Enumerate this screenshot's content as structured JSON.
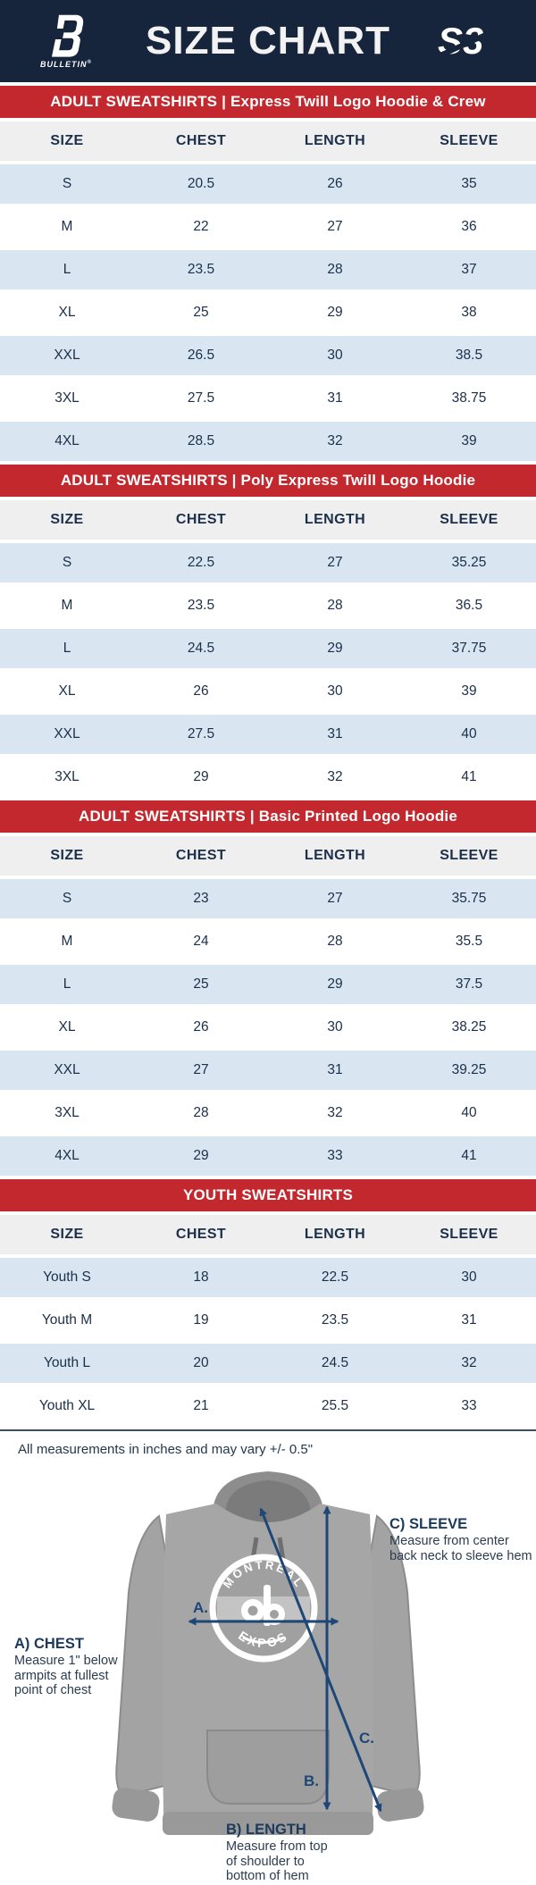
{
  "header": {
    "title": "SIZE CHART",
    "brand_left": "BULLETIN",
    "brand_left_mark": "®",
    "brand_right": "S3"
  },
  "tables": [
    {
      "banner": "ADULT SWEATSHIRTS | Express Twill Logo Hoodie & Crew",
      "columns": [
        "SIZE",
        "CHEST",
        "LENGTH",
        "SLEEVE"
      ],
      "rows": [
        [
          "S",
          "20.5",
          "26",
          "35"
        ],
        [
          "M",
          "22",
          "27",
          "36"
        ],
        [
          "L",
          "23.5",
          "28",
          "37"
        ],
        [
          "XL",
          "25",
          "29",
          "38"
        ],
        [
          "XXL",
          "26.5",
          "30",
          "38.5"
        ],
        [
          "3XL",
          "27.5",
          "31",
          "38.75"
        ],
        [
          "4XL",
          "28.5",
          "32",
          "39"
        ]
      ]
    },
    {
      "banner": "ADULT SWEATSHIRTS | Poly Express Twill Logo Hoodie",
      "columns": [
        "SIZE",
        "CHEST",
        "LENGTH",
        "SLEEVE"
      ],
      "rows": [
        [
          "S",
          "22.5",
          "27",
          "35.25"
        ],
        [
          "M",
          "23.5",
          "28",
          "36.5"
        ],
        [
          "L",
          "24.5",
          "29",
          "37.75"
        ],
        [
          "XL",
          "26",
          "30",
          "39"
        ],
        [
          "XXL",
          "27.5",
          "31",
          "40"
        ],
        [
          "3XL",
          "29",
          "32",
          "41"
        ]
      ]
    },
    {
      "banner": "ADULT SWEATSHIRTS | Basic Printed Logo Hoodie",
      "columns": [
        "SIZE",
        "CHEST",
        "LENGTH",
        "SLEEVE"
      ],
      "rows": [
        [
          "S",
          "23",
          "27",
          "35.75"
        ],
        [
          "M",
          "24",
          "28",
          "35.5"
        ],
        [
          "L",
          "25",
          "29",
          "37.5"
        ],
        [
          "XL",
          "26",
          "30",
          "38.25"
        ],
        [
          "XXL",
          "27",
          "31",
          "39.25"
        ],
        [
          "3XL",
          "28",
          "32",
          "40"
        ],
        [
          "4XL",
          "29",
          "33",
          "41"
        ]
      ]
    },
    {
      "banner": "YOUTH SWEATSHIRTS",
      "columns": [
        "SIZE",
        "CHEST",
        "LENGTH",
        "SLEEVE"
      ],
      "rows": [
        [
          "Youth S",
          "18",
          "22.5",
          "30"
        ],
        [
          "Youth M",
          "19",
          "23.5",
          "31"
        ],
        [
          "Youth L",
          "20",
          "24.5",
          "32"
        ],
        [
          "Youth XL",
          "21",
          "25.5",
          "33"
        ]
      ]
    }
  ],
  "note": "All measurements in inches and may vary +/- 0.5\"",
  "diagram": {
    "logo_top": "MONTRÉAL",
    "logo_bottom": "EXPOS",
    "labels": {
      "a": "A.",
      "b": "B.",
      "c": "C."
    },
    "annotations": [
      {
        "title": "A) CHEST",
        "lines": [
          "Measure 1\" below",
          "armpits at fullest",
          "point of chest"
        ]
      },
      {
        "title": "B) LENGTH",
        "lines": [
          "Measure from top",
          "of shoulder to",
          "bottom of hem"
        ]
      },
      {
        "title": "C) SLEEVE",
        "lines": [
          "Measure from center",
          "back neck to sleeve hem"
        ]
      }
    ]
  },
  "colors": {
    "header_navy": "#16243c",
    "banner_red": "#c2282e",
    "row_blue": "#d9e6f2",
    "head_gray": "#efefef",
    "text_navy": "#1b2f4a",
    "arrow_blue": "#1d4777"
  }
}
